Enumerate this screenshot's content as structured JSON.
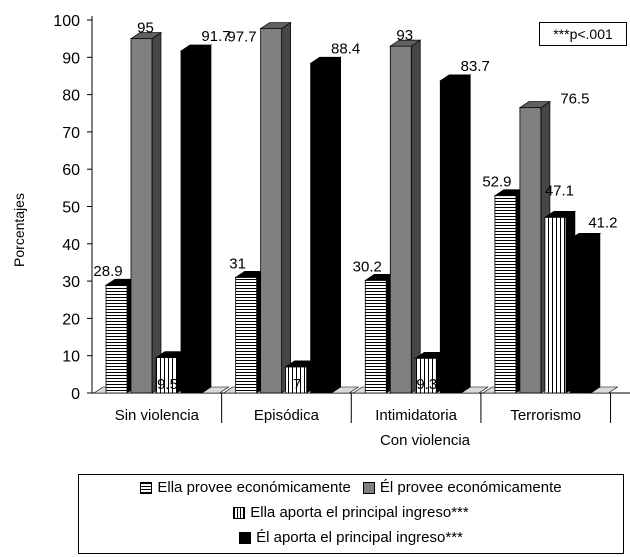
{
  "chart_data": {
    "type": "bar",
    "ylabel": "Porcentajes",
    "xlabel": "Con violencia",
    "ylim": [
      0,
      100
    ],
    "yticks": [
      0,
      10,
      20,
      30,
      40,
      50,
      60,
      70,
      80,
      90,
      100
    ],
    "categories": [
      "Sin violencia",
      "Episódica",
      "Intimidatoria",
      "Terrorismo"
    ],
    "series": [
      {
        "name": "Ella provee económicamente",
        "pattern": "horizontal-stripes",
        "values": [
          28.9,
          31,
          30.2,
          52.9
        ],
        "labels": [
          "28.9",
          "31",
          "30.2",
          "52.9"
        ]
      },
      {
        "name": "Él provee económicamente",
        "color": "#808080",
        "values": [
          95,
          97.7,
          93,
          76.5
        ],
        "labels": [
          "95",
          "97.7",
          "93",
          "76.5"
        ]
      },
      {
        "name": "Ella aporta el principal ingreso***",
        "pattern": "vertical-stripes",
        "values": [
          9.5,
          7,
          9.3,
          47.1
        ],
        "labels": [
          "9.5",
          "7",
          "9.3",
          "47.1"
        ]
      },
      {
        "name": "Él aporta el principal ingreso***",
        "color": "#000000",
        "values": [
          91.7,
          88.4,
          83.7,
          41.2
        ],
        "labels": [
          "91.7",
          "88.4",
          "83.7",
          "41.2"
        ]
      }
    ],
    "annotation": "***p<.001",
    "grid": false,
    "legend_position": "bottom"
  }
}
